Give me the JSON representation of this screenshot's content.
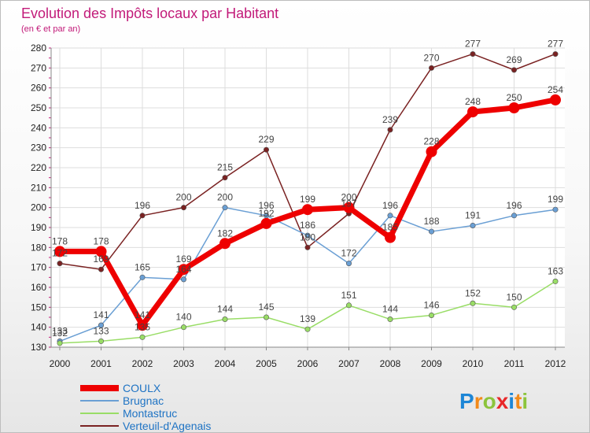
{
  "chart_data": {
    "type": "line",
    "title": "Evolution des Impôts locaux par Habitant",
    "subtitle": "(en € et par an)",
    "categories": [
      "2000",
      "2001",
      "2002",
      "2003",
      "2004",
      "2005",
      "2006",
      "2007",
      "2008",
      "2009",
      "2010",
      "2011",
      "2012"
    ],
    "ylim": [
      130,
      280
    ],
    "yticks": [
      130,
      140,
      150,
      160,
      170,
      180,
      190,
      200,
      210,
      220,
      230,
      240,
      250,
      260,
      270,
      280
    ],
    "series": [
      {
        "name": "COULX",
        "color": "#ee0000",
        "values": [
          178,
          178,
          141,
          169,
          182,
          192,
          199,
          200,
          185,
          228,
          248,
          250,
          254
        ],
        "labels": [
          "178",
          "178",
          "141",
          "169",
          "182",
          "192",
          "199",
          "200",
          "185",
          "228",
          "248",
          "250",
          "254"
        ]
      },
      {
        "name": "Brugnac",
        "color": "#6a9fd4",
        "values": [
          133,
          141,
          165,
          164,
          200,
          196,
          186,
          172,
          196,
          188,
          191,
          196,
          199
        ],
        "labels": [
          "133",
          "141",
          "165",
          "164",
          "200",
          "196",
          "186",
          "172",
          "196",
          "188",
          "191",
          "196",
          "199"
        ]
      },
      {
        "name": "Montastruc",
        "color": "#99dd66",
        "values": [
          132,
          133,
          135,
          140,
          144,
          145,
          139,
          151,
          144,
          146,
          152,
          150,
          163
        ],
        "labels": [
          "132",
          "133",
          "135",
          "140",
          "144",
          "145",
          "139",
          "151",
          "144",
          "146",
          "152",
          "150",
          "163"
        ]
      },
      {
        "name": "Verteuil-d'Agenais",
        "color": "#7a2222",
        "values": [
          172,
          169,
          196,
          200,
          215,
          229,
          180,
          197,
          239,
          270,
          277,
          269,
          277
        ],
        "labels": [
          "172",
          "169",
          "196",
          "200",
          "215",
          "229",
          "180",
          "197",
          "239",
          "270",
          "277",
          "269",
          "277"
        ]
      }
    ],
    "grid": true,
    "legend_position": "bottom-left"
  },
  "logo": {
    "text": "Proxiti"
  }
}
